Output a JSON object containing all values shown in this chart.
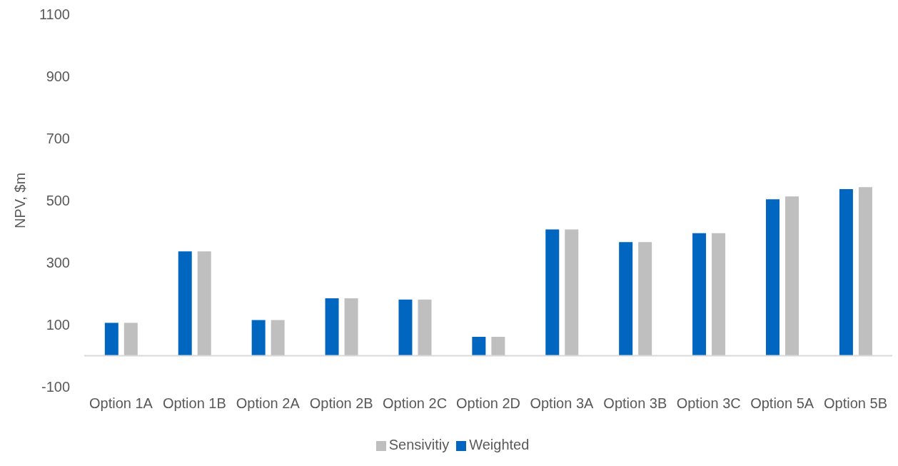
{
  "chart_data": {
    "type": "bar",
    "ylabel": "NPV, $m",
    "categories": [
      "Option 1A",
      "Option 1B",
      "Option 2A",
      "Option 2B",
      "Option 2C",
      "Option 2D",
      "Option 3A",
      "Option 3B",
      "Option 3C",
      "Option 5A",
      "Option 5B"
    ],
    "series": [
      {
        "name": "Weighted",
        "color": "#0066c0",
        "values": [
          106,
          336,
          115,
          185,
          181,
          61,
          407,
          366,
          395,
          504,
          537
        ]
      },
      {
        "name": "Sensivitiy",
        "color": "#bfbfbf",
        "values": [
          106,
          336,
          115,
          185,
          181,
          61,
          407,
          366,
          395,
          513,
          543
        ]
      }
    ],
    "ylim": [
      -100,
      1100
    ],
    "yticks": [
      -100,
      100,
      300,
      500,
      700,
      900,
      1100
    ],
    "ref_lines": [
      {
        "axis": "y",
        "value": 0,
        "color": "#d9d9d9"
      }
    ],
    "grid": false,
    "legend": "bottom"
  }
}
